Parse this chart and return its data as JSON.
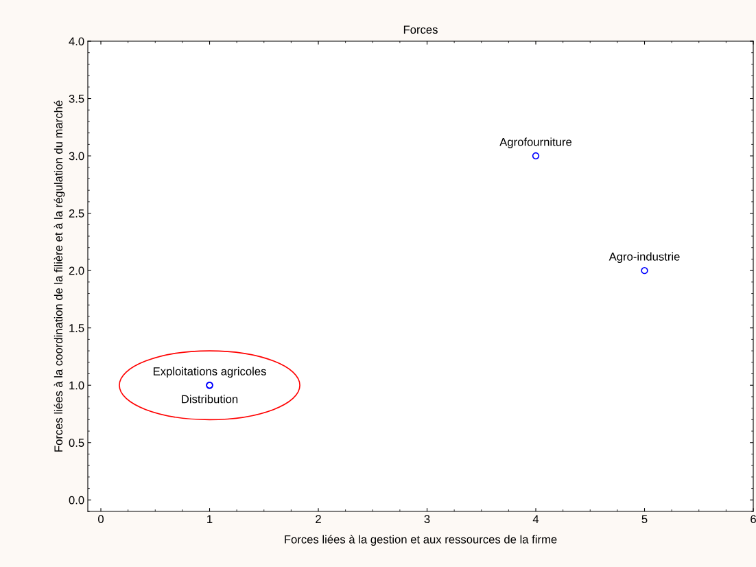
{
  "chart_data": {
    "type": "scatter",
    "title": "Forces",
    "xlabel": "Forces liées à la gestion et aux ressources de la firme",
    "ylabel": "Forces liées à la coordination de la filière et à la régulation du marché",
    "x": [
      1,
      1,
      4,
      5
    ],
    "series": [
      {
        "color": "#0000ff",
        "values": [
          1,
          1,
          3,
          2
        ]
      }
    ],
    "marker": "circle",
    "annotations": [
      {
        "text": "Exploitations agricoles",
        "x": 1,
        "y": 1
      },
      {
        "text": "Distribution",
        "x": 1,
        "y": 1
      },
      {
        "text": "Agrofourniture",
        "x": 4,
        "y": 3
      },
      {
        "text": "Agro-industrie",
        "x": 5,
        "y": 2
      }
    ],
    "xlim": [
      -0.12,
      6
    ],
    "ylim": [
      -0.1,
      4
    ],
    "xticks": [
      0,
      1,
      2,
      3,
      4,
      5,
      6
    ],
    "yticks": [
      {
        "value": 0,
        "label": "0.0"
      },
      {
        "value": 0.5,
        "label": "0.5"
      },
      {
        "value": 1,
        "label": "1.0"
      },
      {
        "value": 1.5,
        "label": "1.5"
      },
      {
        "value": 2,
        "label": "2.0"
      },
      {
        "value": 2.5,
        "label": "2.5"
      },
      {
        "value": 3,
        "label": "3.0"
      },
      {
        "value": 3.5,
        "label": "3.5"
      },
      {
        "value": 4,
        "label": "4.0"
      }
    ],
    "grid": false,
    "legend": false
  }
}
